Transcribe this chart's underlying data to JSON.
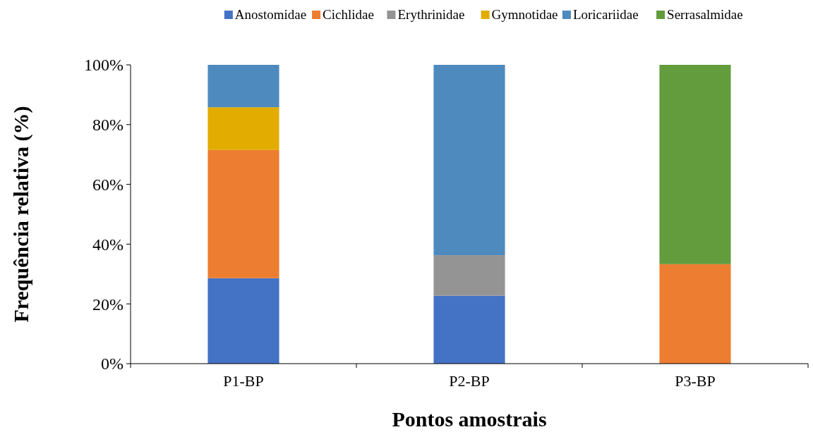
{
  "chart_data": {
    "type": "bar",
    "stacked": true,
    "xlabel": "Pontos amostrais",
    "ylabel": "Frequência relativa (%)",
    "categories": [
      "P1-BP",
      "P2-BP",
      "P3-BP"
    ],
    "series": [
      {
        "name": "Anostomidae",
        "color": "#4472c4",
        "values": [
          28.6,
          22.7,
          null
        ]
      },
      {
        "name": "Cichlidae",
        "color": "#ed7d31",
        "values": [
          42.9,
          null,
          33.3
        ]
      },
      {
        "name": "Erythrinidae",
        "color": "#949494",
        "values": [
          null,
          13.6,
          null
        ]
      },
      {
        "name": "Gymnotidae",
        "color": "#e2ac00",
        "values": [
          14.3,
          null,
          null
        ]
      },
      {
        "name": "Loricariidae",
        "color": "#4e8abd",
        "values": [
          14.2,
          63.7,
          null
        ]
      },
      {
        "name": "Serrasalmidae",
        "color": "#629c3d",
        "values": [
          null,
          null,
          66.7
        ]
      }
    ],
    "ylim": [
      0,
      100
    ],
    "yticks": [
      {
        "value": 0,
        "label": "0%"
      },
      {
        "value": 20,
        "label": "20%"
      },
      {
        "value": 40,
        "label": "40%"
      },
      {
        "value": 60,
        "label": "60%"
      },
      {
        "value": 80,
        "label": "80%"
      },
      {
        "value": 100,
        "label": "100%"
      }
    ],
    "grid": false,
    "legend": "top"
  }
}
